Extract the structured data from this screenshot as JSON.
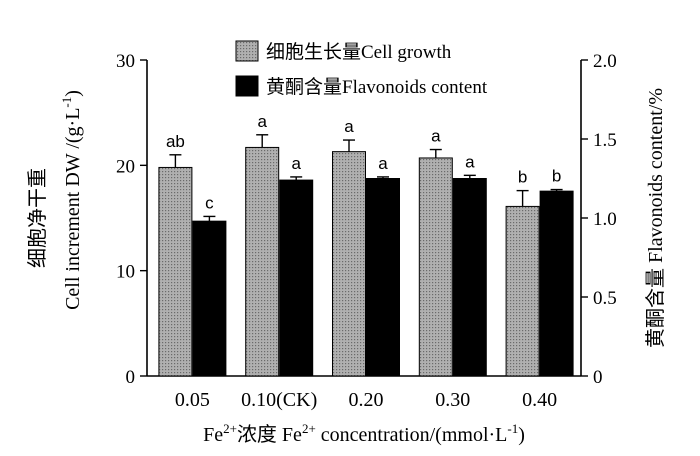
{
  "chart_data": {
    "type": "bar",
    "categories": [
      "0.05",
      "0.10(CK)",
      "0.20",
      "0.30",
      "0.40"
    ],
    "xlabel": {
      "prefix": "Fe",
      "sup1": "2+",
      "mid": "浓度  Fe",
      "sup2": "2+",
      "tail": " concentration/(mmol·L",
      "sup3": "-1",
      "end": ")"
    },
    "ylabel_left": {
      "line1": "细胞净干重",
      "line2": "Cell increment DW /(g·L",
      "sup": "-1",
      "end": ")"
    },
    "ylabel_right": "黄酮含量 Flavonoids content/%",
    "ylim_left": [
      0,
      30
    ],
    "yticks_left": [
      "0",
      "10",
      "20",
      "30"
    ],
    "ylim_right": [
      0,
      2.0
    ],
    "yticks_right": [
      "0",
      "0.5",
      "1.0",
      "1.5",
      "2.0"
    ],
    "legend_position": "top-center",
    "series": [
      {
        "name": "细胞生长量Cell growth",
        "axis": "left",
        "fill": "#a6a6a6",
        "values": [
          19.8,
          21.7,
          21.3,
          20.7,
          16.1
        ],
        "errors": [
          1.2,
          1.2,
          1.1,
          0.8,
          1.5
        ],
        "labels": [
          "ab",
          "a",
          "a",
          "a",
          "b"
        ]
      },
      {
        "name": "黄酮含量Flavonoids content",
        "axis": "right",
        "fill": "#000000",
        "values": [
          0.98,
          1.24,
          1.25,
          1.25,
          1.17
        ],
        "errors": [
          0.03,
          0.02,
          0.01,
          0.02,
          0.01
        ],
        "labels": [
          "c",
          "a",
          "a",
          "a",
          "b"
        ]
      }
    ]
  }
}
